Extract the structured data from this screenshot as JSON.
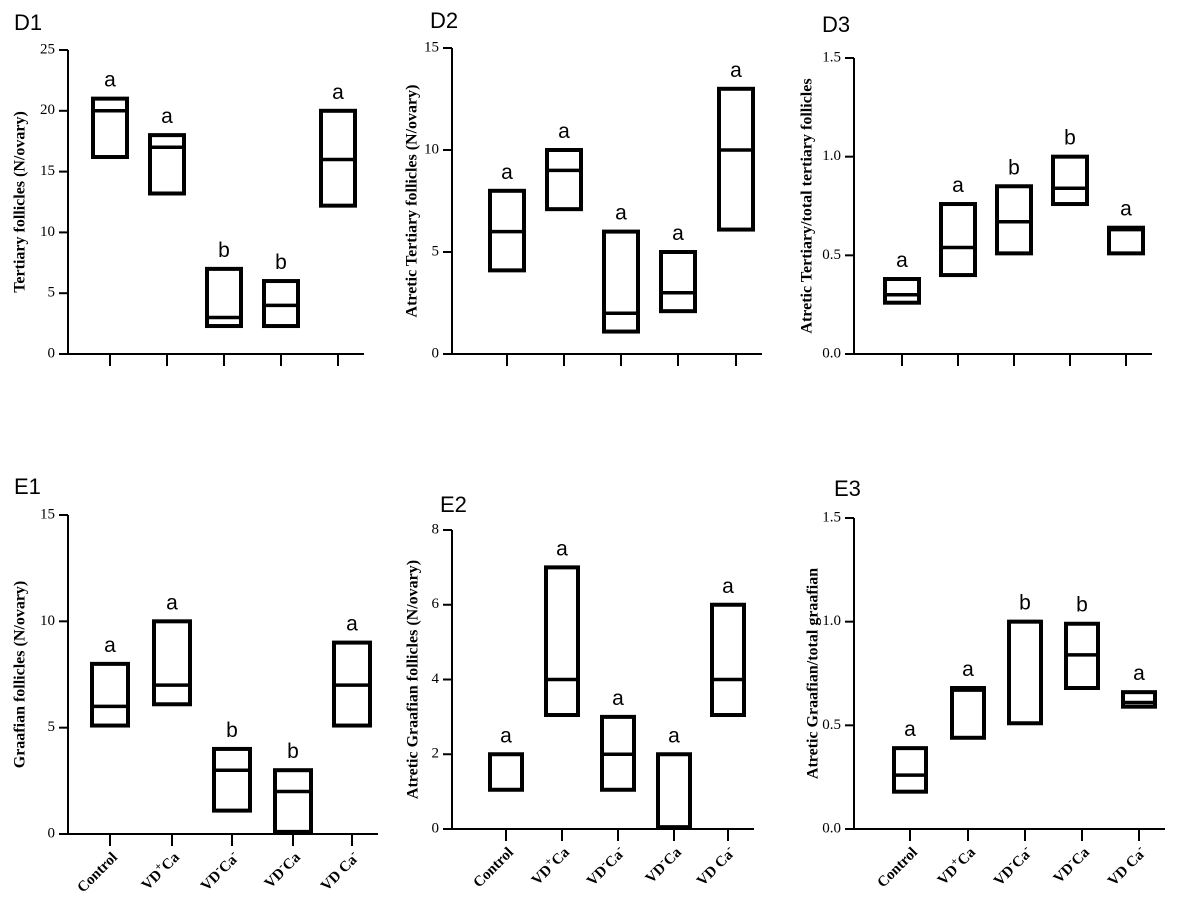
{
  "chart_data": [
    {
      "panel": "D1",
      "type": "box",
      "ylabel": "Tertiary follicles (N/ovary)",
      "ylim": [
        0,
        25
      ],
      "yticks": [
        0,
        5,
        10,
        15,
        20,
        25
      ],
      "categories": [
        "Control",
        "VD+Ca",
        "VD-Ca-",
        "VD-Ca",
        "VD Ca-"
      ],
      "show_xlabels": false,
      "boxes": [
        {
          "low": 16.2,
          "median": 20.0,
          "high": 21.0,
          "letter": "a"
        },
        {
          "low": 13.2,
          "median": 17.0,
          "high": 18.0,
          "letter": "a"
        },
        {
          "low": 2.3,
          "median": 3.0,
          "high": 7.0,
          "letter": "b"
        },
        {
          "low": 2.3,
          "median": 4.0,
          "high": 6.0,
          "letter": "b"
        },
        {
          "low": 12.2,
          "median": 16.0,
          "high": 20.0,
          "letter": "a"
        }
      ]
    },
    {
      "panel": "D2",
      "type": "box",
      "ylabel": "Atretic Tertiary follicles (N/ovary)",
      "ylim": [
        0,
        15
      ],
      "yticks": [
        0,
        5,
        10,
        15
      ],
      "categories": [
        "Control",
        "VD+Ca",
        "VD-Ca-",
        "VD-Ca",
        "VD Ca-"
      ],
      "show_xlabels": false,
      "boxes": [
        {
          "low": 4.1,
          "median": 6.0,
          "high": 8.0,
          "letter": "a"
        },
        {
          "low": 7.1,
          "median": 9.0,
          "high": 10.0,
          "letter": "a"
        },
        {
          "low": 1.1,
          "median": 2.0,
          "high": 6.0,
          "letter": "a"
        },
        {
          "low": 2.1,
          "median": 3.0,
          "high": 5.0,
          "letter": "a"
        },
        {
          "low": 6.1,
          "median": 10.0,
          "high": 13.0,
          "letter": "a"
        }
      ]
    },
    {
      "panel": "D3",
      "type": "box",
      "ylabel": "Atretic Tertiary/total tertiary follicles",
      "ylim": [
        0,
        1.5
      ],
      "yticks": [
        "0.0",
        "0.5",
        "1.0",
        "1.5"
      ],
      "categories": [
        "Control",
        "VD+Ca",
        "VD-Ca-",
        "VD-Ca",
        "VD Ca-"
      ],
      "show_xlabels": false,
      "boxes": [
        {
          "low": 0.26,
          "median": 0.3,
          "high": 0.38,
          "letter": "a"
        },
        {
          "low": 0.4,
          "median": 0.54,
          "high": 0.76,
          "letter": "a"
        },
        {
          "low": 0.51,
          "median": 0.67,
          "high": 0.85,
          "letter": "b"
        },
        {
          "low": 0.76,
          "median": 0.84,
          "high": 1.0,
          "letter": "b"
        },
        {
          "low": 0.51,
          "median": 0.63,
          "high": 0.64,
          "letter": "a"
        }
      ]
    },
    {
      "panel": "E1",
      "type": "box",
      "ylabel": "Graafian follicles (N/ovary)",
      "ylim": [
        0,
        15
      ],
      "yticks": [
        0,
        5,
        10,
        15
      ],
      "categories": [
        "Control",
        "VD+Ca",
        "VD-Ca-",
        "VD-Ca",
        "VD Ca-"
      ],
      "show_xlabels": true,
      "boxes": [
        {
          "low": 5.1,
          "median": 6.0,
          "high": 8.0,
          "letter": "a"
        },
        {
          "low": 6.1,
          "median": 7.0,
          "high": 10.0,
          "letter": "a"
        },
        {
          "low": 1.1,
          "median": 3.0,
          "high": 4.0,
          "letter": "b"
        },
        {
          "low": 0.1,
          "median": 2.0,
          "high": 3.0,
          "letter": "b"
        },
        {
          "low": 5.1,
          "median": 7.0,
          "high": 9.0,
          "letter": "a"
        }
      ]
    },
    {
      "panel": "E2",
      "type": "box",
      "ylabel": "Atretic Graafian follicles (N/ovary)",
      "ylim": [
        0,
        8
      ],
      "yticks": [
        0,
        2,
        4,
        6,
        8
      ],
      "categories": [
        "Control",
        "VD+Ca",
        "VD-Ca-",
        "VD-Ca",
        "VD Ca-"
      ],
      "show_xlabels": true,
      "boxes": [
        {
          "low": 1.05,
          "median": 2.0,
          "high": 2.0,
          "letter": "a"
        },
        {
          "low": 3.05,
          "median": 4.0,
          "high": 7.0,
          "letter": "a"
        },
        {
          "low": 1.05,
          "median": 2.0,
          "high": 3.0,
          "letter": "a"
        },
        {
          "low": 0.05,
          "median": 2.0,
          "high": 2.0,
          "letter": "a"
        },
        {
          "low": 3.05,
          "median": 4.0,
          "high": 6.0,
          "letter": "a"
        }
      ]
    },
    {
      "panel": "E3",
      "type": "box",
      "ylabel": "Atretic Graafian/total graafian",
      "ylim": [
        0,
        1.5
      ],
      "yticks": [
        "0.0",
        "0.5",
        "1.0",
        "1.5"
      ],
      "categories": [
        "Control",
        "VD+Ca",
        "VD-Ca-",
        "VD-Ca",
        "VD Ca-"
      ],
      "show_xlabels": true,
      "boxes": [
        {
          "low": 0.18,
          "median": 0.26,
          "high": 0.39,
          "letter": "a"
        },
        {
          "low": 0.44,
          "median": 0.67,
          "high": 0.68,
          "letter": "a"
        },
        {
          "low": 0.51,
          "median": 1.0,
          "high": 1.0,
          "letter": "b"
        },
        {
          "low": 0.68,
          "median": 0.84,
          "high": 0.99,
          "letter": "b"
        },
        {
          "low": 0.59,
          "median": 0.61,
          "high": 0.66,
          "letter": "a"
        }
      ]
    }
  ],
  "xlabel_parts": [
    [
      {
        "t": "Control",
        "s": ""
      }
    ],
    [
      {
        "t": "VD",
        "s": ""
      },
      {
        "t": "+",
        "s": "sup"
      },
      {
        "t": "Ca",
        "s": ""
      }
    ],
    [
      {
        "t": "VD",
        "s": ""
      },
      {
        "t": "-",
        "s": "sup"
      },
      {
        "t": "Ca",
        "s": ""
      },
      {
        "t": "-",
        "s": "sup"
      }
    ],
    [
      {
        "t": "VD",
        "s": ""
      },
      {
        "t": "-",
        "s": "sup"
      },
      {
        "t": "Ca",
        "s": ""
      }
    ],
    [
      {
        "t": "VD Ca",
        "s": ""
      },
      {
        "t": "-",
        "s": "sup"
      }
    ]
  ]
}
